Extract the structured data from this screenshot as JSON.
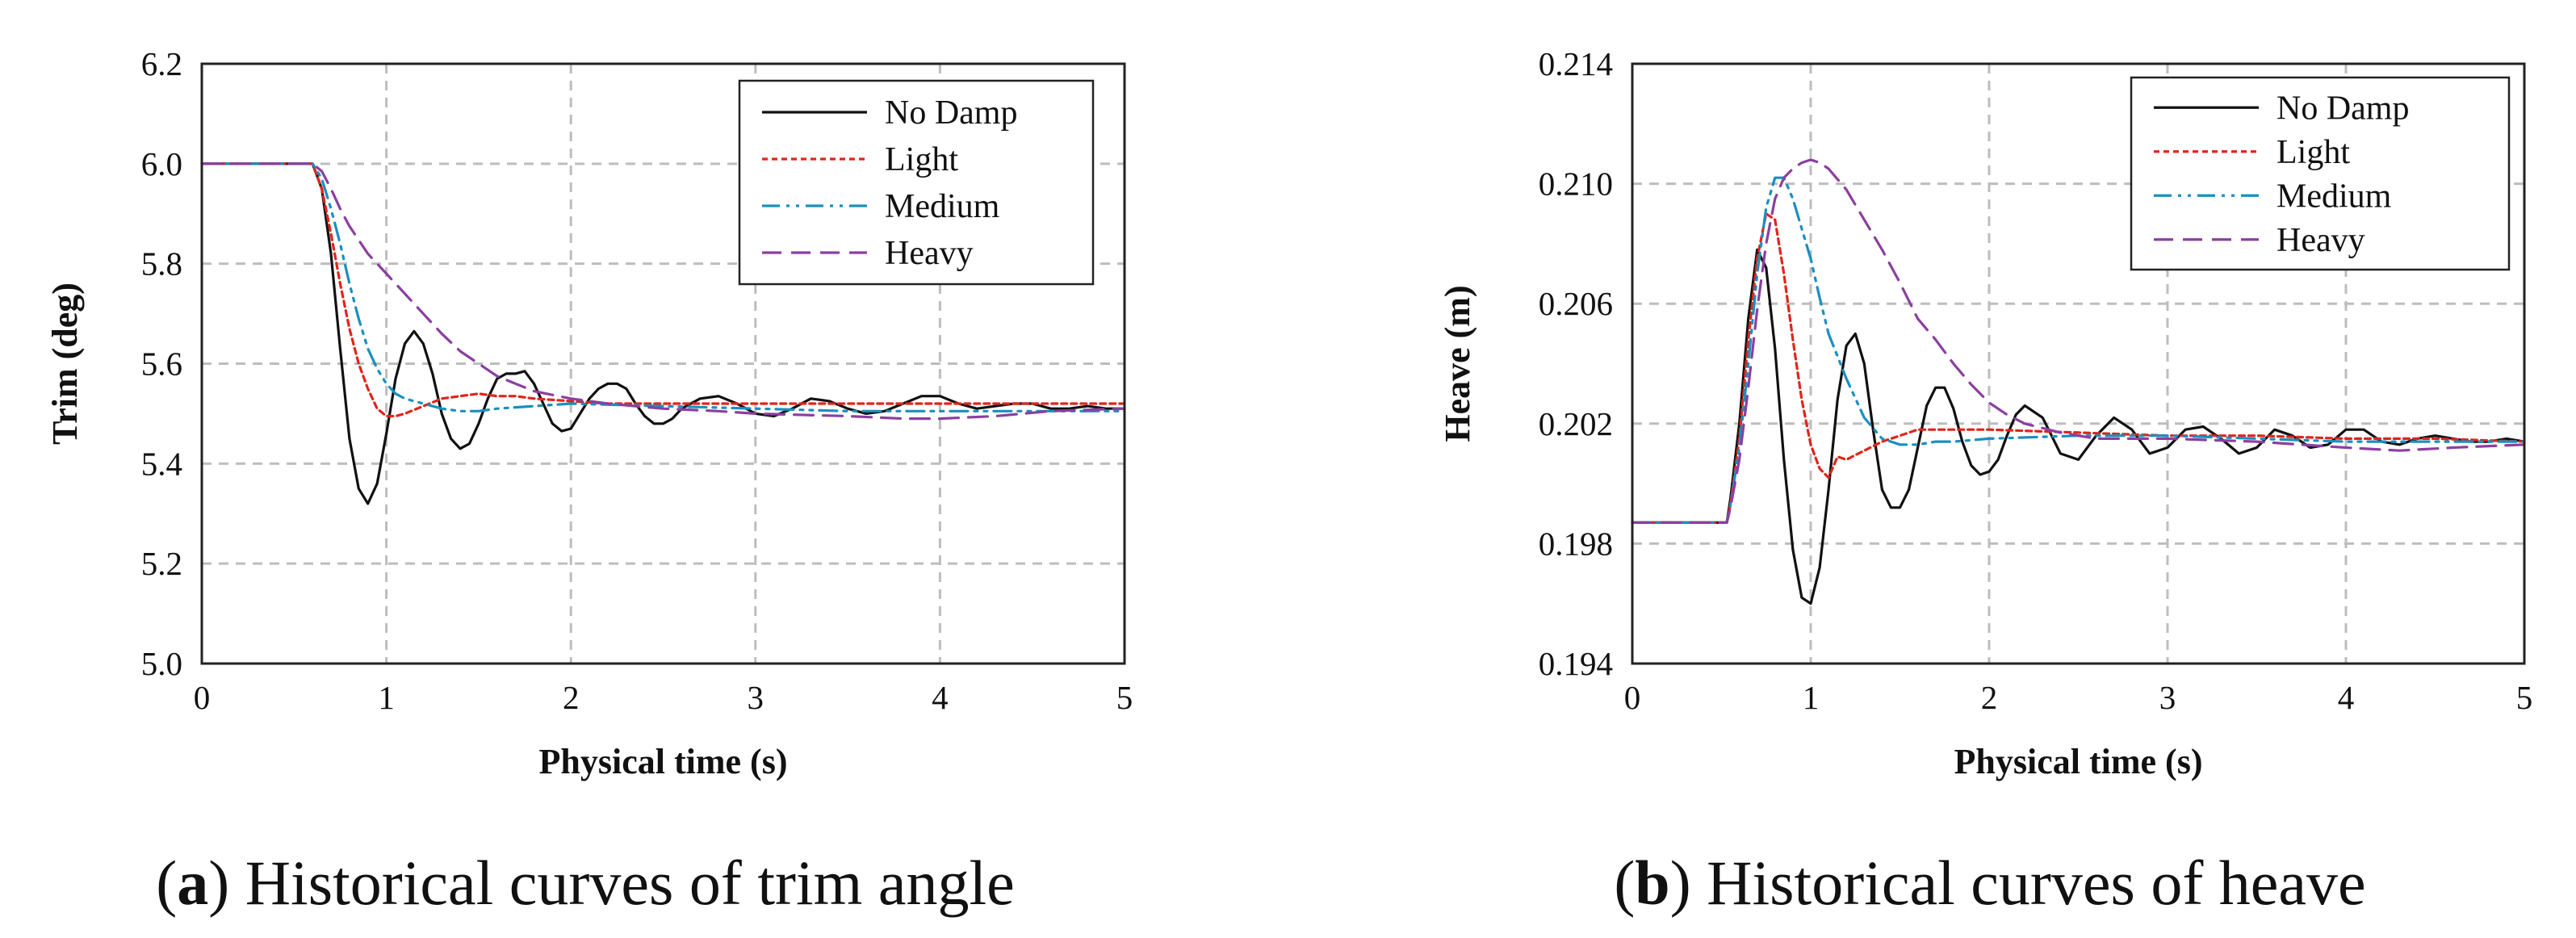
{
  "figure": {
    "panels": [
      {
        "label": "a",
        "caption": "Historical curves of trim angle"
      },
      {
        "label": "b",
        "caption": "Historical curves of heave"
      }
    ]
  },
  "series_styles": {
    "No Damp": {
      "color": "#111111",
      "dash": ""
    },
    "Light": {
      "color": "#e0251b",
      "dash": "7 5"
    },
    "Medium": {
      "color": "#1a8fc0",
      "dash": "22 8 4 8 4 8"
    },
    "Heavy": {
      "color": "#8b3fa0",
      "dash": "24 12"
    }
  },
  "chart_data": [
    {
      "type": "line",
      "title": "",
      "xlabel": "Physical time (s)",
      "ylabel": "Trim (deg)",
      "xlim": [
        0,
        5
      ],
      "ylim": [
        5.0,
        6.2
      ],
      "x_ticks": [
        0,
        1,
        2,
        3,
        4,
        5
      ],
      "y_ticks": [
        "5.0",
        "5.2",
        "5.4",
        "5.6",
        "5.8",
        "6.0",
        "6.2"
      ],
      "grid": true,
      "legend_position": "top-right",
      "series": [
        {
          "name": "No Damp",
          "x": [
            0,
            0.6,
            0.65,
            0.7,
            0.75,
            0.8,
            0.85,
            0.9,
            0.95,
            1.0,
            1.05,
            1.1,
            1.15,
            1.2,
            1.25,
            1.3,
            1.35,
            1.4,
            1.45,
            1.5,
            1.55,
            1.6,
            1.65,
            1.7,
            1.75,
            1.8,
            1.85,
            1.9,
            1.95,
            2.0,
            2.05,
            2.1,
            2.15,
            2.2,
            2.25,
            2.3,
            2.35,
            2.4,
            2.45,
            2.5,
            2.55,
            2.6,
            2.7,
            2.8,
            2.9,
            3.0,
            3.1,
            3.2,
            3.3,
            3.4,
            3.5,
            3.6,
            3.7,
            3.8,
            3.9,
            4.0,
            4.1,
            4.2,
            4.3,
            4.4,
            4.5,
            4.6,
            4.7,
            4.8,
            4.9,
            5.0
          ],
          "y": [
            6.0,
            6.0,
            5.95,
            5.82,
            5.63,
            5.45,
            5.35,
            5.32,
            5.36,
            5.46,
            5.57,
            5.64,
            5.665,
            5.64,
            5.58,
            5.5,
            5.45,
            5.43,
            5.44,
            5.48,
            5.53,
            5.57,
            5.58,
            5.58,
            5.585,
            5.56,
            5.52,
            5.48,
            5.465,
            5.47,
            5.5,
            5.53,
            5.55,
            5.56,
            5.56,
            5.55,
            5.52,
            5.495,
            5.48,
            5.48,
            5.49,
            5.51,
            5.53,
            5.535,
            5.52,
            5.5,
            5.495,
            5.51,
            5.53,
            5.525,
            5.51,
            5.5,
            5.505,
            5.52,
            5.535,
            5.535,
            5.52,
            5.51,
            5.515,
            5.52,
            5.52,
            5.51,
            5.51,
            5.515,
            5.51,
            5.51
          ]
        },
        {
          "name": "Light",
          "x": [
            0,
            0.6,
            0.65,
            0.7,
            0.75,
            0.8,
            0.85,
            0.9,
            0.95,
            1.0,
            1.05,
            1.1,
            1.2,
            1.3,
            1.4,
            1.5,
            1.6,
            1.7,
            1.8,
            2.0,
            2.2,
            2.5,
            3.0,
            3.5,
            4.0,
            4.5,
            5.0
          ],
          "y": [
            6.0,
            6.0,
            5.95,
            5.86,
            5.76,
            5.67,
            5.6,
            5.55,
            5.51,
            5.495,
            5.495,
            5.5,
            5.515,
            5.53,
            5.535,
            5.54,
            5.535,
            5.535,
            5.53,
            5.525,
            5.52,
            5.52,
            5.52,
            5.52,
            5.52,
            5.52,
            5.52
          ]
        },
        {
          "name": "Medium",
          "x": [
            0,
            0.6,
            0.65,
            0.7,
            0.75,
            0.8,
            0.85,
            0.9,
            0.95,
            1.0,
            1.05,
            1.1,
            1.2,
            1.3,
            1.4,
            1.5,
            1.6,
            1.8,
            2.0,
            2.5,
            3.0,
            3.5,
            4.0,
            4.5,
            5.0
          ],
          "y": [
            6.0,
            6.0,
            5.97,
            5.91,
            5.84,
            5.76,
            5.69,
            5.63,
            5.59,
            5.56,
            5.54,
            5.53,
            5.52,
            5.51,
            5.505,
            5.505,
            5.51,
            5.515,
            5.52,
            5.515,
            5.51,
            5.505,
            5.505,
            5.505,
            5.505
          ]
        },
        {
          "name": "Heavy",
          "x": [
            0,
            0.6,
            0.65,
            0.7,
            0.75,
            0.8,
            0.9,
            1.0,
            1.1,
            1.2,
            1.3,
            1.4,
            1.5,
            1.6,
            1.7,
            1.8,
            2.0,
            2.2,
            2.5,
            2.8,
            3.0,
            3.5,
            3.8,
            4.0,
            4.3,
            4.6,
            5.0
          ],
          "y": [
            6.0,
            6.0,
            5.985,
            5.95,
            5.91,
            5.875,
            5.82,
            5.78,
            5.74,
            5.7,
            5.66,
            5.625,
            5.6,
            5.575,
            5.56,
            5.545,
            5.53,
            5.52,
            5.51,
            5.505,
            5.5,
            5.495,
            5.49,
            5.49,
            5.495,
            5.505,
            5.51
          ]
        }
      ]
    },
    {
      "type": "line",
      "title": "",
      "xlabel": "Physical time (s)",
      "ylabel": "Heave (m)",
      "xlim": [
        0,
        5
      ],
      "ylim": [
        0.194,
        0.214
      ],
      "x_ticks": [
        0,
        1,
        2,
        3,
        4,
        5
      ],
      "y_ticks": [
        "0.194",
        "0.198",
        "0.202",
        "0.206",
        "0.210",
        "0.214"
      ],
      "grid": true,
      "legend_position": "top-right",
      "series": [
        {
          "name": "No Damp",
          "x": [
            0,
            0.53,
            0.55,
            0.6,
            0.65,
            0.7,
            0.75,
            0.8,
            0.85,
            0.9,
            0.95,
            1.0,
            1.05,
            1.1,
            1.15,
            1.2,
            1.25,
            1.3,
            1.35,
            1.4,
            1.45,
            1.5,
            1.55,
            1.6,
            1.65,
            1.7,
            1.75,
            1.8,
            1.85,
            1.9,
            1.95,
            2.0,
            2.05,
            2.1,
            2.15,
            2.2,
            2.3,
            2.4,
            2.5,
            2.6,
            2.7,
            2.8,
            2.9,
            3.0,
            3.1,
            3.2,
            3.3,
            3.4,
            3.5,
            3.6,
            3.7,
            3.8,
            3.9,
            4.0,
            4.1,
            4.2,
            4.3,
            4.4,
            4.5,
            4.6,
            4.7,
            4.8,
            4.9,
            5.0
          ],
          "y": [
            0.1987,
            0.1987,
            0.1995,
            0.202,
            0.2055,
            0.2078,
            0.2072,
            0.2045,
            0.2008,
            0.1978,
            0.1962,
            0.196,
            0.1972,
            0.1998,
            0.2028,
            0.2046,
            0.205,
            0.204,
            0.2018,
            0.1998,
            0.1992,
            0.1992,
            0.1998,
            0.2012,
            0.2026,
            0.2032,
            0.2032,
            0.2025,
            0.2014,
            0.2006,
            0.2003,
            0.2004,
            0.2008,
            0.2016,
            0.2023,
            0.2026,
            0.2022,
            0.201,
            0.2008,
            0.2016,
            0.2022,
            0.2018,
            0.201,
            0.2012,
            0.2018,
            0.2019,
            0.2015,
            0.201,
            0.2012,
            0.2018,
            0.2016,
            0.2012,
            0.2013,
            0.2018,
            0.2018,
            0.2014,
            0.2013,
            0.2015,
            0.2016,
            0.2015,
            0.2014,
            0.2014,
            0.2015,
            0.2014
          ]
        },
        {
          "name": "Light",
          "x": [
            0,
            0.53,
            0.55,
            0.6,
            0.65,
            0.7,
            0.75,
            0.8,
            0.85,
            0.9,
            0.95,
            1.0,
            1.05,
            1.1,
            1.15,
            1.2,
            1.3,
            1.4,
            1.5,
            1.6,
            1.8,
            2.0,
            2.5,
            3.0,
            3.5,
            4.0,
            4.5,
            5.0
          ],
          "y": [
            0.1987,
            0.1987,
            0.1993,
            0.2015,
            0.2048,
            0.2075,
            0.209,
            0.2088,
            0.207,
            0.2048,
            0.2028,
            0.2013,
            0.2005,
            0.2002,
            0.2009,
            0.2008,
            0.2011,
            0.2014,
            0.2016,
            0.2018,
            0.2018,
            0.2018,
            0.2017,
            0.2016,
            0.2016,
            0.2015,
            0.2015,
            0.2014
          ]
        },
        {
          "name": "Medium",
          "x": [
            0,
            0.53,
            0.55,
            0.6,
            0.65,
            0.7,
            0.75,
            0.8,
            0.85,
            0.9,
            0.95,
            1.0,
            1.05,
            1.1,
            1.2,
            1.3,
            1.4,
            1.5,
            1.6,
            1.7,
            1.8,
            2.0,
            2.5,
            3.0,
            3.5,
            4.0,
            4.5,
            5.0
          ],
          "y": [
            0.1987,
            0.1987,
            0.1993,
            0.2012,
            0.204,
            0.207,
            0.2092,
            0.2102,
            0.2102,
            0.2095,
            0.2085,
            0.2075,
            0.2062,
            0.205,
            0.2035,
            0.2022,
            0.2015,
            0.2013,
            0.2013,
            0.2014,
            0.2014,
            0.2015,
            0.2016,
            0.2016,
            0.2015,
            0.2014,
            0.2014,
            0.2014
          ]
        },
        {
          "name": "Heavy",
          "x": [
            0,
            0.53,
            0.55,
            0.6,
            0.65,
            0.7,
            0.75,
            0.8,
            0.85,
            0.9,
            0.95,
            1.0,
            1.05,
            1.1,
            1.2,
            1.3,
            1.4,
            1.5,
            1.6,
            1.7,
            1.8,
            1.9,
            2.0,
            2.1,
            2.2,
            2.4,
            2.6,
            2.8,
            3.0,
            3.5,
            4.0,
            4.3,
            4.6,
            5.0
          ],
          "y": [
            0.1987,
            0.1987,
            0.1992,
            0.2008,
            0.2032,
            0.2058,
            0.208,
            0.2095,
            0.2102,
            0.2105,
            0.2107,
            0.2108,
            0.2107,
            0.2105,
            0.2098,
            0.2088,
            0.2078,
            0.2067,
            0.2055,
            0.2048,
            0.204,
            0.2033,
            0.2027,
            0.2023,
            0.202,
            0.2017,
            0.2015,
            0.2015,
            0.2015,
            0.2014,
            0.2012,
            0.2011,
            0.2012,
            0.2013
          ]
        }
      ]
    }
  ]
}
